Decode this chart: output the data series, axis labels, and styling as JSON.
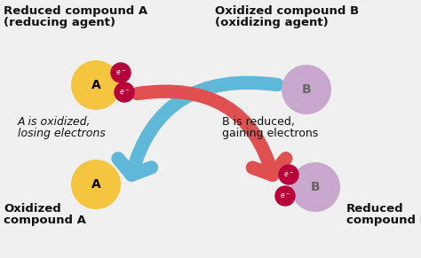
{
  "bg_color": "#f0f0f0",
  "texts": {
    "top_left_line1": "Reduced compound A",
    "top_left_line2": "(reducing agent)",
    "top_right_line1": "Oxidized compound B",
    "top_right_line2": "(oxidizing agent)",
    "mid_left_line1": "A is oxidized,",
    "mid_left_line2": "losing electrons",
    "mid_right_line1": "B is reduced,",
    "mid_right_line2": "gaining electrons",
    "bot_left_line1": "Oxidized",
    "bot_left_line2": "compound A",
    "bot_right_line1": "Reduced",
    "bot_right_line2": "compound B"
  },
  "colors": {
    "text": "#111111",
    "atom_A": "#f5c540",
    "atom_B": "#c8a8cc",
    "electron": "#b8003a",
    "arrow_red": "#e05050",
    "arrow_blue": "#60b8d8",
    "electron_text": "#ffffff"
  }
}
